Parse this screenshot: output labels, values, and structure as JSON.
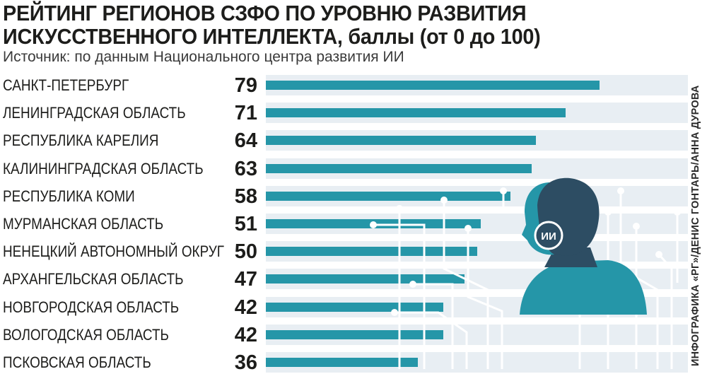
{
  "title_line1": "РЕЙТИНГ РЕГИОНОВ СЗФО ПО УРОВНЮ РАЗВИТИЯ",
  "title_line2": "ИСКУССТВЕННОГО ИНТЕЛЛЕКТА, баллы (от 0 до 100)",
  "subtitle": "Источник: по данным Национального центра развития ИИ",
  "credit": "ИНФОГРАФИКА «РГ»/ДЕНИС ГОНТАРЬ/АННА ДУРОВА",
  "illustration": {
    "head_label": "ИИ",
    "accent_color": "#2596a8",
    "dark_color": "#2d4d63"
  },
  "colors": {
    "bar": "#2596a8",
    "track": "#e8eef3",
    "text": "#1d1d1b"
  },
  "chart_data": {
    "type": "bar",
    "orientation": "horizontal",
    "title": "РЕЙТИНГ РЕГИОНОВ СЗФО ПО УРОВНЮ РАЗВИТИЯ ИСКУССТВЕННОГО ИНТЕЛЛЕКТА, баллы (от 0 до 100)",
    "xlim": [
      0,
      100
    ],
    "grid": false,
    "categories": [
      "САНКТ-ПЕТЕРБУРГ",
      "ЛЕНИНГРАДСКАЯ ОБЛАСТЬ",
      "РЕСПУБЛИКА КАРЕЛИЯ",
      "КАЛИНИНГРАДСКАЯ ОБЛАСТЬ",
      "РЕСПУБЛИКА КОМИ",
      "МУРМАНСКАЯ ОБЛАСТЬ",
      "НЕНЕЦКИЙ АВТОНОМНЫЙ ОКРУГ",
      "АРХАНГЕЛЬСКАЯ ОБЛАСТЬ",
      "НОВГОРОДСКАЯ ОБЛАСТЬ",
      "ВОЛОГОДСКАЯ ОБЛАСТЬ",
      "ПСКОВСКАЯ ОБЛАСТЬ"
    ],
    "values": [
      79,
      71,
      64,
      63,
      58,
      51,
      50,
      47,
      42,
      42,
      36
    ]
  }
}
